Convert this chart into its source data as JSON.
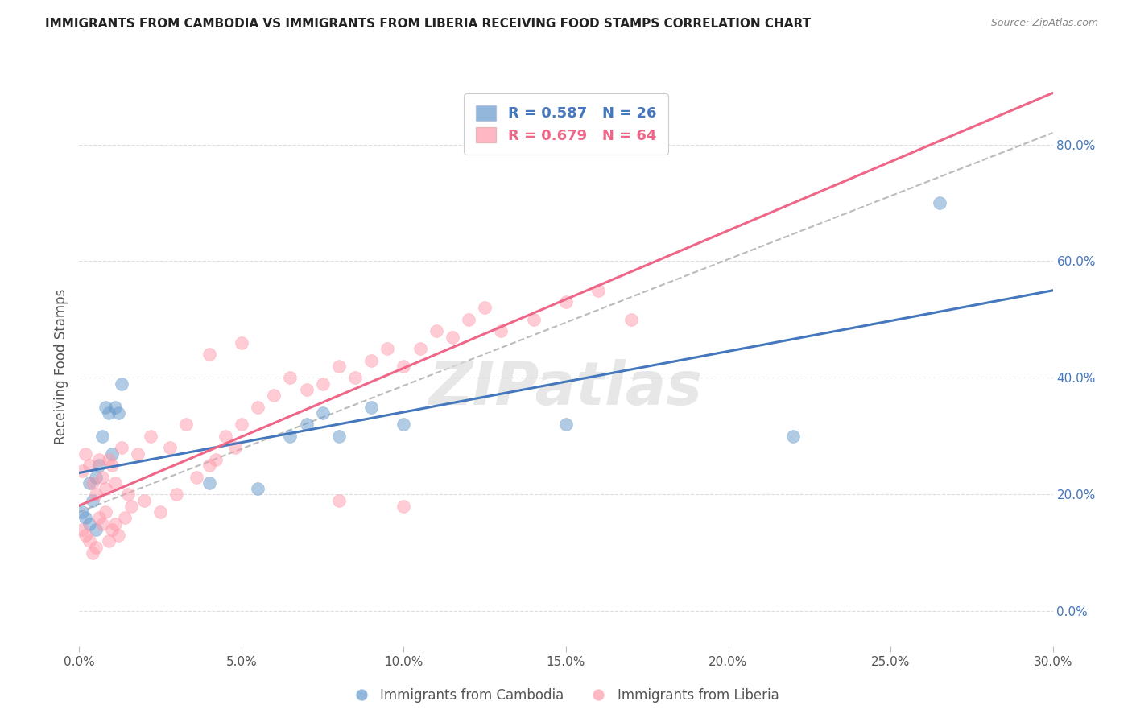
{
  "title": "IMMIGRANTS FROM CAMBODIA VS IMMIGRANTS FROM LIBERIA RECEIVING FOOD STAMPS CORRELATION CHART",
  "source": "Source: ZipAtlas.com",
  "ylabel": "Receiving Food Stamps",
  "xlabel_ticks": [
    "0.0%",
    "5.0%",
    "10.0%",
    "15.0%",
    "20.0%",
    "25.0%",
    "30.0%"
  ],
  "xlabel_vals": [
    0.0,
    0.05,
    0.1,
    0.15,
    0.2,
    0.25,
    0.3
  ],
  "ylabel_ticks": [
    "0.0%",
    "20.0%",
    "40.0%",
    "60.0%",
    "80.0%"
  ],
  "ylabel_vals": [
    0.0,
    0.2,
    0.4,
    0.6,
    0.8
  ],
  "xlim": [
    0.0,
    0.3
  ],
  "ylim": [
    -0.06,
    0.9
  ],
  "legend_blue_label": "R = 0.587   N = 26",
  "legend_pink_label": "R = 0.679   N = 64",
  "legend_series1": "Immigrants from Cambodia",
  "legend_series2": "Immigrants from Liberia",
  "color_blue": "#6699CC",
  "color_pink": "#FF99AA",
  "color_blue_line": "#4477BB",
  "color_pink_line": "#EE6688",
  "watermark": "ZIPatlas",
  "cambodia_x": [
    0.001,
    0.002,
    0.003,
    0.003,
    0.004,
    0.005,
    0.005,
    0.006,
    0.007,
    0.008,
    0.009,
    0.01,
    0.011,
    0.012,
    0.013,
    0.04,
    0.055,
    0.065,
    0.07,
    0.075,
    0.08,
    0.09,
    0.1,
    0.15,
    0.22,
    0.265
  ],
  "cambodia_y": [
    0.17,
    0.16,
    0.15,
    0.22,
    0.19,
    0.14,
    0.23,
    0.25,
    0.3,
    0.35,
    0.34,
    0.27,
    0.35,
    0.34,
    0.39,
    0.22,
    0.21,
    0.3,
    0.32,
    0.34,
    0.3,
    0.35,
    0.32,
    0.32,
    0.3,
    0.7
  ],
  "liberia_x": [
    0.001,
    0.001,
    0.002,
    0.002,
    0.003,
    0.003,
    0.004,
    0.004,
    0.005,
    0.005,
    0.006,
    0.006,
    0.007,
    0.007,
    0.008,
    0.008,
    0.009,
    0.009,
    0.01,
    0.01,
    0.011,
    0.011,
    0.012,
    0.013,
    0.014,
    0.015,
    0.016,
    0.018,
    0.02,
    0.022,
    0.025,
    0.028,
    0.03,
    0.033,
    0.036,
    0.04,
    0.042,
    0.045,
    0.048,
    0.05,
    0.055,
    0.06,
    0.065,
    0.07,
    0.075,
    0.08,
    0.085,
    0.09,
    0.095,
    0.1,
    0.105,
    0.11,
    0.115,
    0.12,
    0.125,
    0.13,
    0.14,
    0.15,
    0.16,
    0.17,
    0.04,
    0.05,
    0.08,
    0.1
  ],
  "liberia_y": [
    0.14,
    0.24,
    0.13,
    0.27,
    0.12,
    0.25,
    0.1,
    0.22,
    0.11,
    0.2,
    0.16,
    0.26,
    0.15,
    0.23,
    0.17,
    0.21,
    0.12,
    0.26,
    0.14,
    0.25,
    0.15,
    0.22,
    0.13,
    0.28,
    0.16,
    0.2,
    0.18,
    0.27,
    0.19,
    0.3,
    0.17,
    0.28,
    0.2,
    0.32,
    0.23,
    0.25,
    0.26,
    0.3,
    0.28,
    0.32,
    0.35,
    0.37,
    0.4,
    0.38,
    0.39,
    0.42,
    0.4,
    0.43,
    0.45,
    0.42,
    0.45,
    0.48,
    0.47,
    0.5,
    0.52,
    0.48,
    0.5,
    0.53,
    0.55,
    0.5,
    0.44,
    0.46,
    0.19,
    0.18
  ]
}
